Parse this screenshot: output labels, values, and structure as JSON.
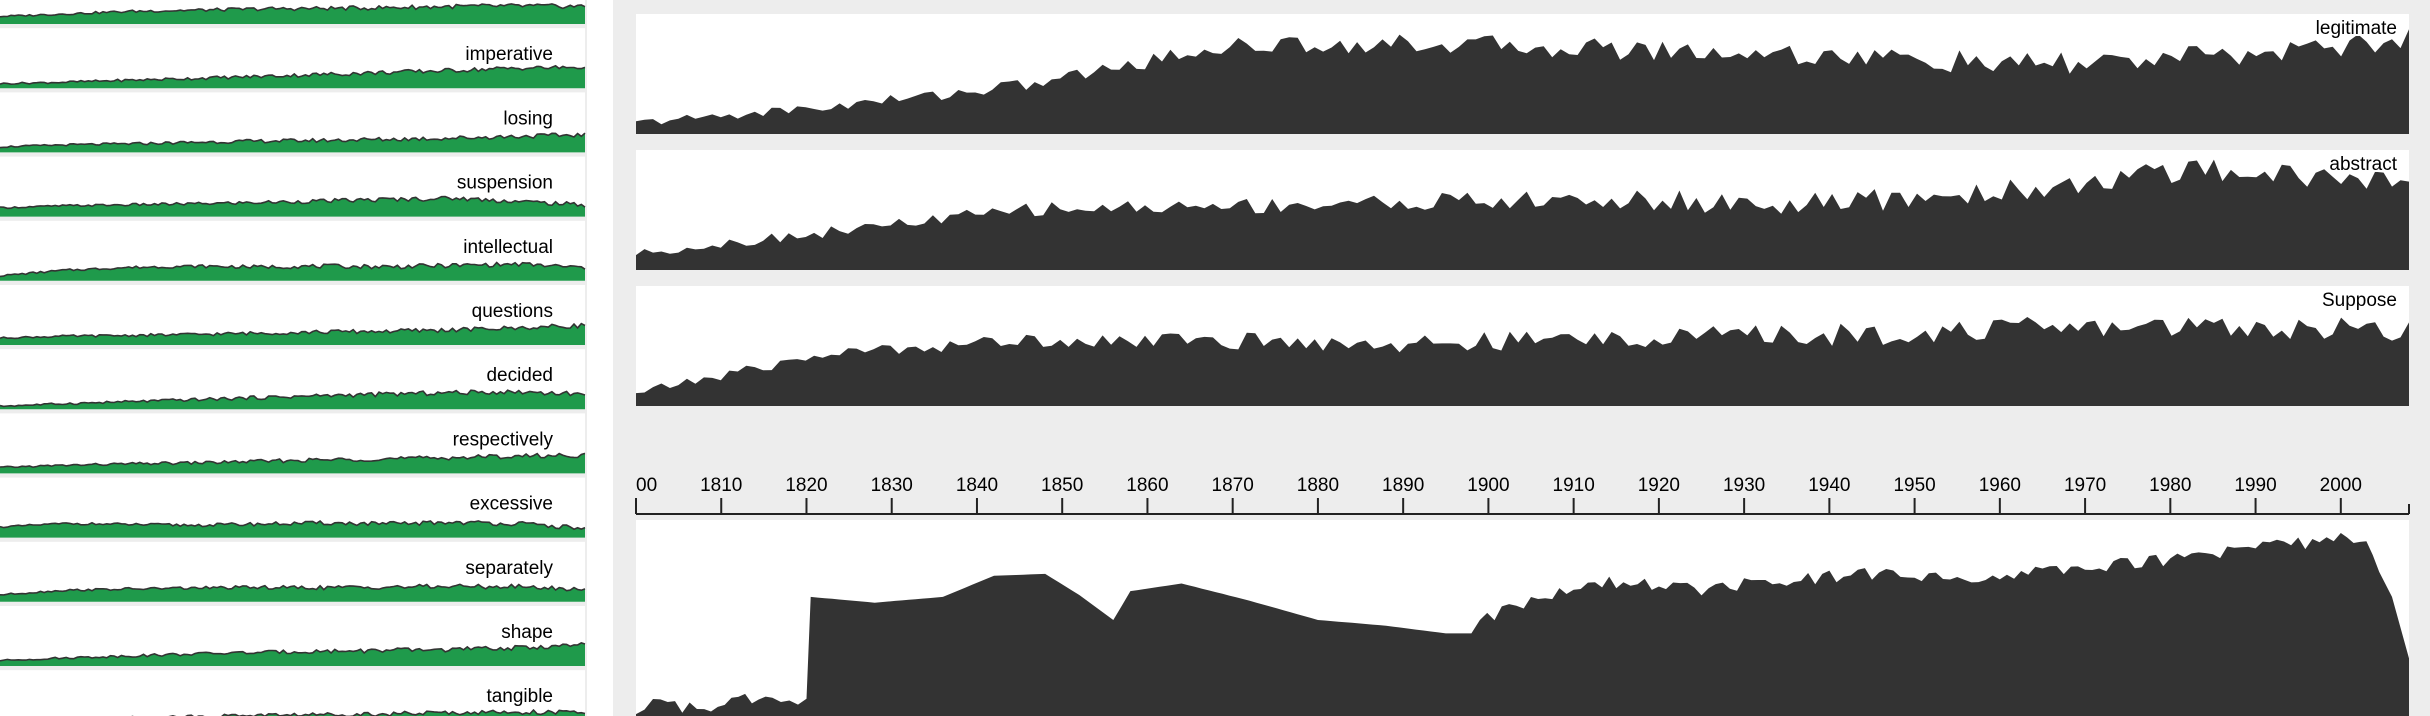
{
  "colors": {
    "background": "#ededed",
    "panel": "#ffffff",
    "sparkline_fill": "#1f9a4b",
    "sparkline_stroke": "#333333",
    "main_fill": "#333333",
    "axis": "#222222",
    "label": "#000000"
  },
  "chart_data": [
    {
      "type": "area",
      "title": "Sparkline list",
      "xlim": [
        1800,
        2008
      ],
      "ylim": [
        0,
        1
      ],
      "series": [
        {
          "name": "Suppose"
        },
        {
          "name": "imperative",
          "values": [
            0.18,
            0.24,
            0.32,
            0.39,
            0.47,
            0.55,
            0.63,
            0.71,
            0.8,
            0.83
          ]
        },
        {
          "name": "losing",
          "values": [
            0.22,
            0.3,
            0.34,
            0.4,
            0.45,
            0.48,
            0.52,
            0.57,
            0.64,
            0.7
          ]
        },
        {
          "name": "suspension",
          "values": [
            0.35,
            0.43,
            0.47,
            0.51,
            0.56,
            0.62,
            0.68,
            0.73,
            0.6,
            0.46
          ]
        },
        {
          "name": "intellectual",
          "values": [
            0.2,
            0.42,
            0.53,
            0.58,
            0.55,
            0.58,
            0.56,
            0.61,
            0.66,
            0.52
          ]
        },
        {
          "name": "questions",
          "values": [
            0.28,
            0.35,
            0.38,
            0.42,
            0.47,
            0.52,
            0.55,
            0.6,
            0.68,
            0.78
          ]
        },
        {
          "name": "decided",
          "values": [
            0.12,
            0.22,
            0.3,
            0.38,
            0.46,
            0.54,
            0.6,
            0.66,
            0.69,
            0.6
          ]
        },
        {
          "name": "respectively",
          "values": [
            0.24,
            0.32,
            0.38,
            0.42,
            0.48,
            0.54,
            0.58,
            0.63,
            0.69,
            0.72
          ]
        },
        {
          "name": "excessive",
          "values": [
            0.42,
            0.56,
            0.52,
            0.49,
            0.54,
            0.58,
            0.54,
            0.61,
            0.55,
            0.36
          ]
        },
        {
          "name": "separately",
          "values": [
            0.28,
            0.46,
            0.51,
            0.55,
            0.57,
            0.56,
            0.59,
            0.61,
            0.6,
            0.48
          ]
        },
        {
          "name": "shape",
          "values": [
            0.22,
            0.32,
            0.4,
            0.48,
            0.54,
            0.59,
            0.62,
            0.66,
            0.72,
            0.84
          ]
        },
        {
          "name": "tangible"
        }
      ]
    },
    {
      "type": "area",
      "title": "Selected words",
      "xlim": [
        1800,
        2008
      ],
      "ylim": [
        0,
        1
      ],
      "series": [
        {
          "name": "legitimate",
          "values": [
            0.1,
            0.25,
            0.45,
            0.8,
            0.82,
            0.77,
            0.72,
            0.62,
            0.7,
            0.85
          ]
        },
        {
          "name": "abstract",
          "values": [
            0.15,
            0.35,
            0.55,
            0.58,
            0.62,
            0.63,
            0.59,
            0.72,
            0.92,
            0.78
          ]
        },
        {
          "name": "Suppose",
          "values": [
            0.12,
            0.48,
            0.6,
            0.59,
            0.56,
            0.62,
            0.64,
            0.7,
            0.73,
            0.68
          ]
        }
      ]
    },
    {
      "type": "line",
      "title": "Time axis",
      "xlim": [
        1800,
        2008
      ],
      "ticks": [
        "00",
        "1810",
        "1820",
        "1830",
        "1840",
        "1850",
        "1860",
        "1870",
        "1880",
        "1890",
        "1900",
        "1910",
        "1920",
        "1930",
        "1940",
        "1950",
        "1960",
        "1970",
        "1980",
        "1990",
        "2000"
      ]
    },
    {
      "type": "area",
      "title": "Aggregate",
      "xlim": [
        1800,
        2008
      ],
      "ylim": [
        0,
        1
      ],
      "x": [
        1800,
        1802,
        1808,
        1812,
        1816,
        1818,
        1820,
        1820.5,
        1828,
        1836,
        1842,
        1848,
        1852,
        1856,
        1858,
        1864,
        1872,
        1880,
        1888,
        1895,
        1898,
        1899,
        1905,
        1915,
        1925,
        1935,
        1945,
        1955,
        1965,
        1975,
        1985,
        1990,
        1995,
        2000,
        2003,
        2006,
        2008
      ],
      "values": [
        0.02,
        0.06,
        0.04,
        0.09,
        0.07,
        0.08,
        0.09,
        0.62,
        0.59,
        0.62,
        0.73,
        0.74,
        0.63,
        0.5,
        0.65,
        0.69,
        0.6,
        0.5,
        0.47,
        0.43,
        0.43,
        0.5,
        0.61,
        0.7,
        0.66,
        0.71,
        0.74,
        0.71,
        0.76,
        0.79,
        0.84,
        0.88,
        0.9,
        0.92,
        0.88,
        0.62,
        0.3
      ]
    }
  ]
}
